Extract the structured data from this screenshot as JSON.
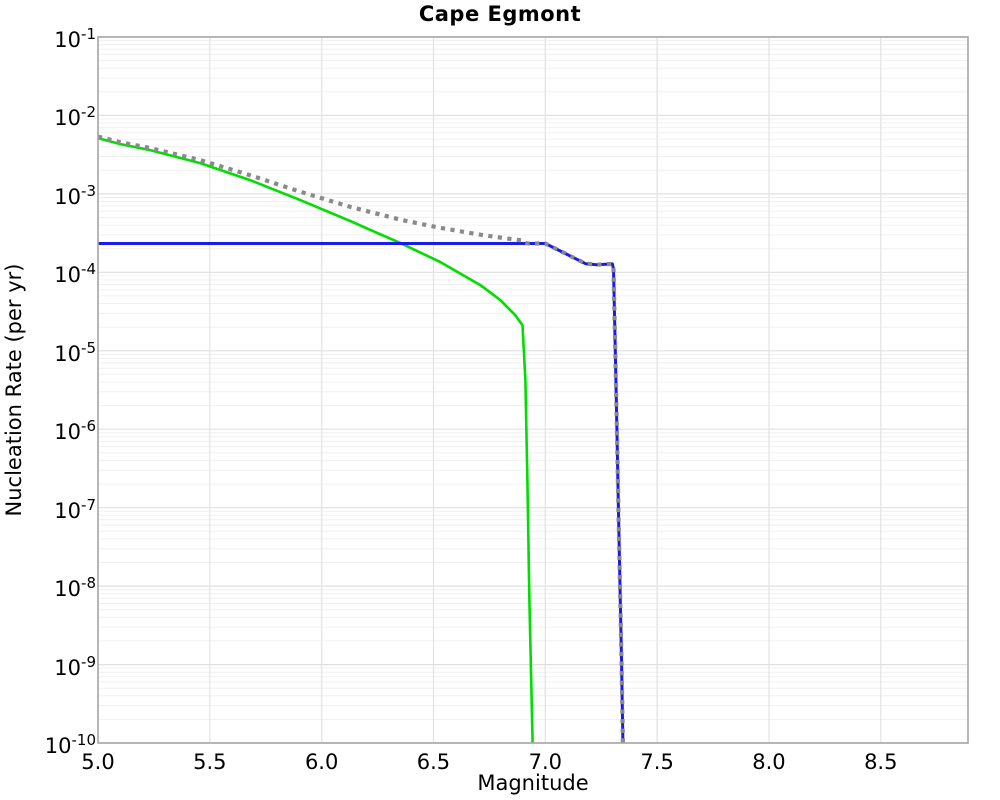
{
  "colors": {
    "grid_minor": "#f0f0f0",
    "grid_major": "#e0e0e0",
    "grid_vertical": "#e2e2e2",
    "frame": "#a6a6a6",
    "series_green": "#00dd00",
    "series_blue": "#1a1aee",
    "series_gray": "#8a8a8a",
    "text": "#000000"
  },
  "chart_data": {
    "type": "line",
    "title": "Cape Egmont",
    "xlabel": "Magnitude",
    "ylabel": "Nucleation Rate (per yr)",
    "xlim": [
      5.0,
      8.89
    ],
    "ylim": [
      1e-10,
      0.1
    ],
    "ylim_log10": [
      -10,
      -1
    ],
    "x_ticks": [
      "5.0",
      "5.5",
      "6.0",
      "6.5",
      "7.0",
      "7.5",
      "8.0",
      "8.5"
    ],
    "y_tick_base": "10",
    "y_ticks": [
      "-1",
      "-2",
      "-3",
      "-4",
      "-5",
      "-6",
      "-7",
      "-8",
      "-9",
      "-10"
    ],
    "grid": "horizontal major + log-minor, vertical at 0.5 magnitude",
    "legend": "none",
    "yscale": "log",
    "series": [
      {
        "name": "green-solid-tapered-rate",
        "color": "#00dd00",
        "style": "solid",
        "width": 2.6,
        "points": [
          [
            5.0,
            0.00515
          ],
          [
            5.1,
            0.00431
          ],
          [
            5.233,
            0.00362
          ],
          [
            5.457,
            0.00247
          ],
          [
            5.68,
            0.0015
          ],
          [
            5.904,
            0.000834
          ],
          [
            6.128,
            0.00045
          ],
          [
            6.352,
            0.000236
          ],
          [
            6.531,
            0.000135
          ],
          [
            6.71,
            6.87e-05
          ],
          [
            6.799,
            4.42e-05
          ],
          [
            6.866,
            2.84e-05
          ],
          [
            6.898,
            2.12e-05
          ],
          [
            6.911,
            4.2e-06
          ],
          [
            6.92,
            2.2e-07
          ],
          [
            6.929,
            6.6e-09
          ],
          [
            6.943,
            1e-10
          ]
        ]
      },
      {
        "name": "blue-solid-floor-rate",
        "color": "#1a1aee",
        "style": "solid",
        "width": 3,
        "points": [
          [
            5.0,
            0.000233
          ],
          [
            7.0,
            0.000233
          ],
          [
            7.18,
            0.000129
          ],
          [
            7.23,
            0.000125
          ],
          [
            7.3,
            0.000128
          ],
          [
            7.305,
            0.00011
          ],
          [
            7.313,
            1e-05
          ],
          [
            7.32,
            1e-06
          ],
          [
            7.327,
            1e-07
          ],
          [
            7.334,
            1e-08
          ],
          [
            7.341,
            1e-09
          ],
          [
            7.347,
            1e-10
          ]
        ]
      },
      {
        "name": "gray-dotted-total-rate",
        "color": "#8a8a8a",
        "style": "dotted",
        "width": 4.2,
        "points": [
          [
            5.0,
            0.00538
          ],
          [
            5.1,
            0.00454
          ],
          [
            5.233,
            0.00385
          ],
          [
            5.457,
            0.0027
          ],
          [
            5.68,
            0.00173
          ],
          [
            5.904,
            0.001067
          ],
          [
            6.128,
            0.000683
          ],
          [
            6.352,
            0.000469
          ],
          [
            6.531,
            0.000368
          ],
          [
            6.71,
            0.000302
          ],
          [
            6.799,
            0.0002775
          ],
          [
            6.866,
            0.0002617
          ],
          [
            6.898,
            0.0002545
          ],
          [
            6.911,
            0.0002375
          ],
          [
            6.92,
            0.0002335
          ],
          [
            6.943,
            0.000233
          ],
          [
            7.0,
            0.000233
          ],
          [
            7.18,
            0.000129
          ],
          [
            7.23,
            0.000125
          ],
          [
            7.3,
            0.000128
          ],
          [
            7.305,
            0.00011
          ],
          [
            7.313,
            1e-05
          ],
          [
            7.32,
            1e-06
          ],
          [
            7.327,
            1e-07
          ],
          [
            7.334,
            1e-08
          ],
          [
            7.341,
            1e-09
          ],
          [
            7.347,
            1e-10
          ]
        ]
      }
    ]
  }
}
